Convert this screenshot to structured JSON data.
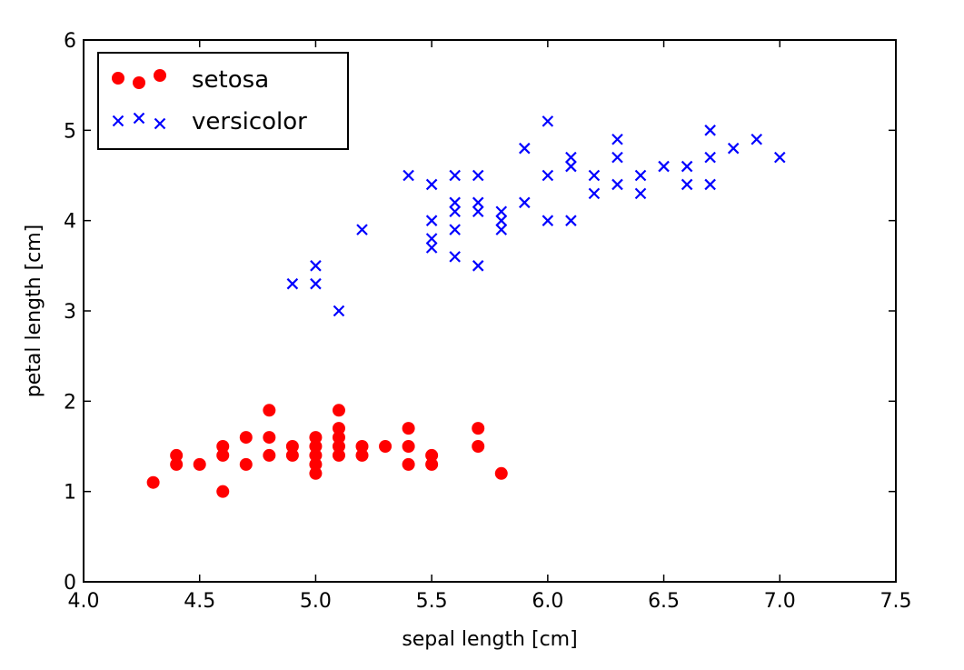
{
  "chart_data": {
    "type": "scatter",
    "title": "",
    "xlabel": "sepal length [cm]",
    "ylabel": "petal length [cm]",
    "xlim": [
      4.0,
      7.5
    ],
    "ylim": [
      0,
      6
    ],
    "xticks": [
      "4.0",
      "4.5",
      "5.0",
      "5.5",
      "6.0",
      "6.5",
      "7.0",
      "7.5"
    ],
    "yticks": [
      "0",
      "1",
      "2",
      "3",
      "4",
      "5",
      "6"
    ],
    "grid": false,
    "legend_position": "top-left",
    "series": [
      {
        "name": "setosa",
        "marker": "circle",
        "color": "#ff0000",
        "points": [
          [
            4.3,
            1.1
          ],
          [
            4.4,
            1.3
          ],
          [
            4.4,
            1.4
          ],
          [
            4.5,
            1.3
          ],
          [
            4.6,
            1.0
          ],
          [
            4.6,
            1.4
          ],
          [
            4.6,
            1.5
          ],
          [
            4.7,
            1.3
          ],
          [
            4.7,
            1.6
          ],
          [
            4.8,
            1.4
          ],
          [
            4.8,
            1.6
          ],
          [
            4.8,
            1.9
          ],
          [
            4.9,
            1.4
          ],
          [
            4.9,
            1.5
          ],
          [
            5.0,
            1.2
          ],
          [
            5.0,
            1.3
          ],
          [
            5.0,
            1.4
          ],
          [
            5.0,
            1.5
          ],
          [
            5.0,
            1.6
          ],
          [
            5.1,
            1.4
          ],
          [
            5.1,
            1.5
          ],
          [
            5.1,
            1.6
          ],
          [
            5.1,
            1.7
          ],
          [
            5.1,
            1.9
          ],
          [
            5.2,
            1.4
          ],
          [
            5.2,
            1.5
          ],
          [
            5.3,
            1.5
          ],
          [
            5.4,
            1.3
          ],
          [
            5.4,
            1.5
          ],
          [
            5.4,
            1.7
          ],
          [
            5.5,
            1.3
          ],
          [
            5.5,
            1.4
          ],
          [
            5.7,
            1.5
          ],
          [
            5.7,
            1.7
          ],
          [
            5.8,
            1.2
          ]
        ]
      },
      {
        "name": "versicolor",
        "marker": "x",
        "color": "#0000ff",
        "points": [
          [
            4.9,
            3.3
          ],
          [
            5.0,
            3.3
          ],
          [
            5.0,
            3.5
          ],
          [
            5.1,
            3.0
          ],
          [
            5.2,
            3.9
          ],
          [
            5.4,
            4.5
          ],
          [
            5.5,
            3.7
          ],
          [
            5.5,
            3.8
          ],
          [
            5.5,
            4.0
          ],
          [
            5.5,
            4.4
          ],
          [
            5.6,
            3.6
          ],
          [
            5.6,
            3.9
          ],
          [
            5.6,
            4.1
          ],
          [
            5.6,
            4.2
          ],
          [
            5.6,
            4.5
          ],
          [
            5.7,
            3.5
          ],
          [
            5.7,
            4.1
          ],
          [
            5.7,
            4.2
          ],
          [
            5.7,
            4.5
          ],
          [
            5.8,
            3.9
          ],
          [
            5.8,
            4.0
          ],
          [
            5.8,
            4.1
          ],
          [
            5.9,
            4.2
          ],
          [
            5.9,
            4.8
          ],
          [
            6.0,
            4.0
          ],
          [
            6.0,
            4.5
          ],
          [
            6.0,
            5.1
          ],
          [
            6.1,
            4.0
          ],
          [
            6.1,
            4.6
          ],
          [
            6.1,
            4.7
          ],
          [
            6.2,
            4.3
          ],
          [
            6.2,
            4.5
          ],
          [
            6.3,
            4.4
          ],
          [
            6.3,
            4.7
          ],
          [
            6.3,
            4.9
          ],
          [
            6.4,
            4.3
          ],
          [
            6.4,
            4.5
          ],
          [
            6.5,
            4.6
          ],
          [
            6.6,
            4.4
          ],
          [
            6.6,
            4.6
          ],
          [
            6.7,
            4.4
          ],
          [
            6.7,
            4.7
          ],
          [
            6.7,
            5.0
          ],
          [
            6.8,
            4.8
          ],
          [
            6.9,
            4.9
          ],
          [
            7.0,
            4.7
          ]
        ]
      }
    ]
  }
}
